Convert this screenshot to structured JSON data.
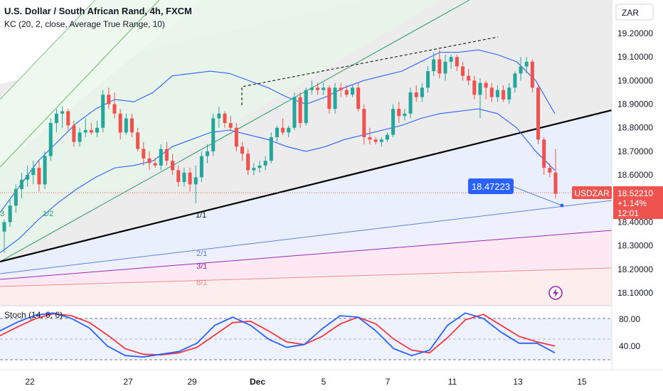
{
  "header": {
    "title": "U.S. Dollar / South African Rand, 4h, FXCM",
    "indicator": "KC (20, 2, close, Average True Range, 10)",
    "currency": "ZAR"
  },
  "price_tag": {
    "symbol": "USDZAR",
    "price": "18.52210",
    "change": "+1.14%",
    "countdown": "12:01"
  },
  "callout": {
    "value": "18.47223"
  },
  "fan_labels": {
    "f1": "1/1",
    "f2": "2/1",
    "f3": "3/1",
    "f4": "8/1",
    "fhalf": "1/2",
    "f3b": "3"
  },
  "oscillator": {
    "label": "Stoch (14, 6, 6)",
    "ticks": [
      "80.00",
      "40.00"
    ]
  },
  "colors": {
    "up": "#26a69a",
    "down": "#ef5350",
    "kc": "#2962ff",
    "stoch_k": "#2962ff",
    "stoch_d": "#f23645",
    "accent": "#2962ff"
  },
  "chart_data": {
    "type": "candlestick",
    "title": "U.S. Dollar / South African Rand, 4h, FXCM",
    "y_axis": {
      "ticks": [
        "19.20000",
        "19.10000",
        "19.00000",
        "18.90000",
        "18.80000",
        "18.70000",
        "18.60000",
        "18.40000",
        "18.30000",
        "18.20000",
        "18.10000"
      ],
      "ylim": [
        18.05,
        19.28
      ]
    },
    "x_axis": {
      "labels": [
        "22",
        "27",
        "29",
        "Dec",
        "5",
        "7",
        "11",
        "13",
        "15"
      ]
    },
    "last_price": 18.5221,
    "candles": [
      {
        "o": 18.36,
        "h": 18.41,
        "l": 18.27,
        "c": 18.4
      },
      {
        "o": 18.4,
        "h": 18.5,
        "l": 18.38,
        "c": 18.47
      },
      {
        "o": 18.47,
        "h": 18.56,
        "l": 18.44,
        "c": 18.54
      },
      {
        "o": 18.54,
        "h": 18.61,
        "l": 18.5,
        "c": 18.58
      },
      {
        "o": 18.58,
        "h": 18.64,
        "l": 18.55,
        "c": 18.6
      },
      {
        "o": 18.6,
        "h": 18.66,
        "l": 18.56,
        "c": 18.63
      },
      {
        "o": 18.63,
        "h": 18.66,
        "l": 18.53,
        "c": 18.56
      },
      {
        "o": 18.56,
        "h": 18.7,
        "l": 18.54,
        "c": 18.68
      },
      {
        "o": 18.68,
        "h": 18.84,
        "l": 18.66,
        "c": 18.82
      },
      {
        "o": 18.82,
        "h": 18.88,
        "l": 18.78,
        "c": 18.86
      },
      {
        "o": 18.86,
        "h": 18.89,
        "l": 18.8,
        "c": 18.87
      },
      {
        "o": 18.87,
        "h": 18.88,
        "l": 18.79,
        "c": 18.81
      },
      {
        "o": 18.81,
        "h": 18.83,
        "l": 18.72,
        "c": 18.74
      },
      {
        "o": 18.74,
        "h": 18.8,
        "l": 18.72,
        "c": 18.78
      },
      {
        "o": 18.78,
        "h": 18.84,
        "l": 18.76,
        "c": 18.79
      },
      {
        "o": 18.79,
        "h": 18.82,
        "l": 18.77,
        "c": 18.78
      },
      {
        "o": 18.78,
        "h": 18.83,
        "l": 18.76,
        "c": 18.8
      },
      {
        "o": 18.8,
        "h": 18.96,
        "l": 18.78,
        "c": 18.94
      },
      {
        "o": 18.94,
        "h": 18.97,
        "l": 18.88,
        "c": 18.9
      },
      {
        "o": 18.9,
        "h": 18.95,
        "l": 18.84,
        "c": 18.86
      },
      {
        "o": 18.86,
        "h": 18.88,
        "l": 18.75,
        "c": 18.78
      },
      {
        "o": 18.78,
        "h": 18.86,
        "l": 18.77,
        "c": 18.84
      },
      {
        "o": 18.84,
        "h": 18.86,
        "l": 18.76,
        "c": 18.78
      },
      {
        "o": 18.78,
        "h": 18.8,
        "l": 18.7,
        "c": 18.71
      },
      {
        "o": 18.71,
        "h": 18.74,
        "l": 18.64,
        "c": 18.67
      },
      {
        "o": 18.67,
        "h": 18.7,
        "l": 18.62,
        "c": 18.65
      },
      {
        "o": 18.65,
        "h": 18.67,
        "l": 18.63,
        "c": 18.64
      },
      {
        "o": 18.64,
        "h": 18.73,
        "l": 18.62,
        "c": 18.71
      },
      {
        "o": 18.71,
        "h": 18.74,
        "l": 18.64,
        "c": 18.66
      },
      {
        "o": 18.66,
        "h": 18.69,
        "l": 18.6,
        "c": 18.62
      },
      {
        "o": 18.62,
        "h": 18.64,
        "l": 18.55,
        "c": 18.57
      },
      {
        "o": 18.57,
        "h": 18.63,
        "l": 18.55,
        "c": 18.61
      },
      {
        "o": 18.61,
        "h": 18.63,
        "l": 18.53,
        "c": 18.56
      },
      {
        "o": 18.56,
        "h": 18.64,
        "l": 18.48,
        "c": 18.59
      },
      {
        "o": 18.59,
        "h": 18.7,
        "l": 18.57,
        "c": 18.68
      },
      {
        "o": 18.68,
        "h": 18.73,
        "l": 18.65,
        "c": 18.7
      },
      {
        "o": 18.7,
        "h": 18.86,
        "l": 18.68,
        "c": 18.84
      },
      {
        "o": 18.84,
        "h": 18.89,
        "l": 18.8,
        "c": 18.86
      },
      {
        "o": 18.86,
        "h": 18.87,
        "l": 18.8,
        "c": 18.82
      },
      {
        "o": 18.82,
        "h": 18.85,
        "l": 18.79,
        "c": 18.8
      },
      {
        "o": 18.8,
        "h": 18.82,
        "l": 18.7,
        "c": 18.72
      },
      {
        "o": 18.72,
        "h": 18.74,
        "l": 18.66,
        "c": 18.69
      },
      {
        "o": 18.69,
        "h": 18.71,
        "l": 18.6,
        "c": 18.62
      },
      {
        "o": 18.62,
        "h": 18.65,
        "l": 18.6,
        "c": 18.63
      },
      {
        "o": 18.63,
        "h": 18.66,
        "l": 18.61,
        "c": 18.64
      },
      {
        "o": 18.64,
        "h": 18.68,
        "l": 18.62,
        "c": 18.66
      },
      {
        "o": 18.66,
        "h": 18.78,
        "l": 18.65,
        "c": 18.76
      },
      {
        "o": 18.76,
        "h": 18.81,
        "l": 18.74,
        "c": 18.8
      },
      {
        "o": 18.8,
        "h": 18.84,
        "l": 18.77,
        "c": 18.78
      },
      {
        "o": 18.78,
        "h": 18.81,
        "l": 18.76,
        "c": 18.8
      },
      {
        "o": 18.8,
        "h": 18.95,
        "l": 18.79,
        "c": 18.93
      },
      {
        "o": 18.93,
        "h": 18.95,
        "l": 18.8,
        "c": 18.82
      },
      {
        "o": 18.82,
        "h": 18.97,
        "l": 18.81,
        "c": 18.96
      },
      {
        "o": 18.96,
        "h": 19.0,
        "l": 18.94,
        "c": 18.97
      },
      {
        "o": 18.97,
        "h": 18.99,
        "l": 18.94,
        "c": 18.96
      },
      {
        "o": 18.96,
        "h": 18.99,
        "l": 18.94,
        "c": 18.97
      },
      {
        "o": 18.97,
        "h": 18.98,
        "l": 18.86,
        "c": 18.88
      },
      {
        "o": 18.88,
        "h": 18.99,
        "l": 18.86,
        "c": 18.97
      },
      {
        "o": 18.97,
        "h": 18.99,
        "l": 18.93,
        "c": 18.96
      },
      {
        "o": 18.96,
        "h": 18.98,
        "l": 18.93,
        "c": 18.94
      },
      {
        "o": 18.94,
        "h": 18.98,
        "l": 18.93,
        "c": 18.97
      },
      {
        "o": 18.97,
        "h": 18.99,
        "l": 18.87,
        "c": 18.88
      },
      {
        "o": 18.88,
        "h": 18.9,
        "l": 18.73,
        "c": 18.76
      },
      {
        "o": 18.76,
        "h": 18.8,
        "l": 18.73,
        "c": 18.75
      },
      {
        "o": 18.75,
        "h": 18.76,
        "l": 18.73,
        "c": 18.74
      },
      {
        "o": 18.74,
        "h": 18.76,
        "l": 18.72,
        "c": 18.75
      },
      {
        "o": 18.75,
        "h": 18.78,
        "l": 18.74,
        "c": 18.77
      },
      {
        "o": 18.77,
        "h": 18.9,
        "l": 18.76,
        "c": 18.88
      },
      {
        "o": 18.88,
        "h": 18.91,
        "l": 18.82,
        "c": 18.85
      },
      {
        "o": 18.85,
        "h": 18.88,
        "l": 18.83,
        "c": 18.86
      },
      {
        "o": 18.86,
        "h": 18.97,
        "l": 18.84,
        "c": 18.95
      },
      {
        "o": 18.95,
        "h": 18.98,
        "l": 18.91,
        "c": 18.93
      },
      {
        "o": 18.93,
        "h": 18.99,
        "l": 18.91,
        "c": 18.97
      },
      {
        "o": 18.97,
        "h": 19.06,
        "l": 18.95,
        "c": 19.04
      },
      {
        "o": 19.04,
        "h": 19.12,
        "l": 19.02,
        "c": 19.09
      },
      {
        "o": 19.09,
        "h": 19.13,
        "l": 19.01,
        "c": 19.03
      },
      {
        "o": 19.03,
        "h": 19.11,
        "l": 19.0,
        "c": 19.08
      },
      {
        "o": 19.08,
        "h": 19.11,
        "l": 19.05,
        "c": 19.1
      },
      {
        "o": 19.1,
        "h": 19.11,
        "l": 19.04,
        "c": 19.06
      },
      {
        "o": 19.06,
        "h": 19.08,
        "l": 19.0,
        "c": 19.02
      },
      {
        "o": 19.02,
        "h": 19.05,
        "l": 18.98,
        "c": 19.0
      },
      {
        "o": 19.0,
        "h": 19.02,
        "l": 18.92,
        "c": 18.94
      },
      {
        "o": 18.94,
        "h": 19.01,
        "l": 18.84,
        "c": 18.99
      },
      {
        "o": 18.99,
        "h": 19.0,
        "l": 18.92,
        "c": 18.97
      },
      {
        "o": 18.97,
        "h": 18.99,
        "l": 18.91,
        "c": 18.93
      },
      {
        "o": 18.93,
        "h": 18.98,
        "l": 18.91,
        "c": 18.96
      },
      {
        "o": 18.96,
        "h": 18.98,
        "l": 18.91,
        "c": 18.92
      },
      {
        "o": 18.92,
        "h": 18.99,
        "l": 18.9,
        "c": 18.97
      },
      {
        "o": 18.97,
        "h": 19.04,
        "l": 18.95,
        "c": 19.03
      },
      {
        "o": 19.03,
        "h": 19.1,
        "l": 19.0,
        "c": 19.06
      },
      {
        "o": 19.06,
        "h": 19.1,
        "l": 19.03,
        "c": 19.08
      },
      {
        "o": 19.08,
        "h": 19.09,
        "l": 18.95,
        "c": 18.97
      },
      {
        "o": 18.97,
        "h": 18.98,
        "l": 18.73,
        "c": 18.75
      },
      {
        "o": 18.75,
        "h": 18.76,
        "l": 18.6,
        "c": 18.63
      },
      {
        "o": 18.63,
        "h": 18.65,
        "l": 18.59,
        "c": 18.61
      },
      {
        "o": 18.61,
        "h": 18.71,
        "l": 18.5,
        "c": 18.52
      }
    ],
    "keltner": {
      "upper": [
        18.44,
        18.55,
        18.66,
        18.74,
        18.82,
        18.88,
        18.92,
        18.91,
        18.95,
        19.02,
        19.03,
        19.04,
        19.03,
        19.0,
        18.97,
        18.93,
        18.9,
        18.93,
        18.97,
        19.0,
        19.02,
        19.04,
        19.08,
        19.12,
        19.12,
        19.13,
        19.11,
        19.08,
        19.0,
        18.86
      ],
      "middle": [
        18.39,
        18.48,
        18.57,
        18.64,
        18.7,
        18.75,
        18.78,
        18.79,
        18.8,
        18.86,
        18.89,
        18.92,
        18.91,
        18.88,
        18.85,
        18.82,
        18.8,
        18.82,
        18.86,
        18.89,
        18.91,
        18.93,
        18.97,
        19.0,
        19.01,
        19.02,
        19.0,
        18.97,
        18.88,
        18.77
      ],
      "lower": [
        18.27,
        18.33,
        18.41,
        18.48,
        18.54,
        18.59,
        18.63,
        18.64,
        18.66,
        18.72,
        18.75,
        18.78,
        18.79,
        18.77,
        18.75,
        18.72,
        18.7,
        18.72,
        18.75,
        18.77,
        18.79,
        18.81,
        18.84,
        18.86,
        18.87,
        18.88,
        18.86,
        18.8,
        18.7,
        18.62
      ]
    },
    "stochastic": {
      "k": [
        62,
        75,
        85,
        88,
        80,
        66,
        40,
        26,
        24,
        28,
        32,
        44,
        70,
        82,
        70,
        50,
        38,
        42,
        65,
        84,
        82,
        62,
        36,
        26,
        34,
        70,
        88,
        80,
        60,
        44,
        44,
        30
      ],
      "d": [
        55,
        68,
        80,
        87,
        84,
        74,
        56,
        36,
        28,
        27,
        30,
        38,
        56,
        74,
        76,
        62,
        46,
        42,
        54,
        72,
        82,
        72,
        50,
        34,
        30,
        52,
        78,
        86,
        70,
        54,
        46,
        40
      ],
      "ylim": [
        10,
        100
      ]
    }
  }
}
